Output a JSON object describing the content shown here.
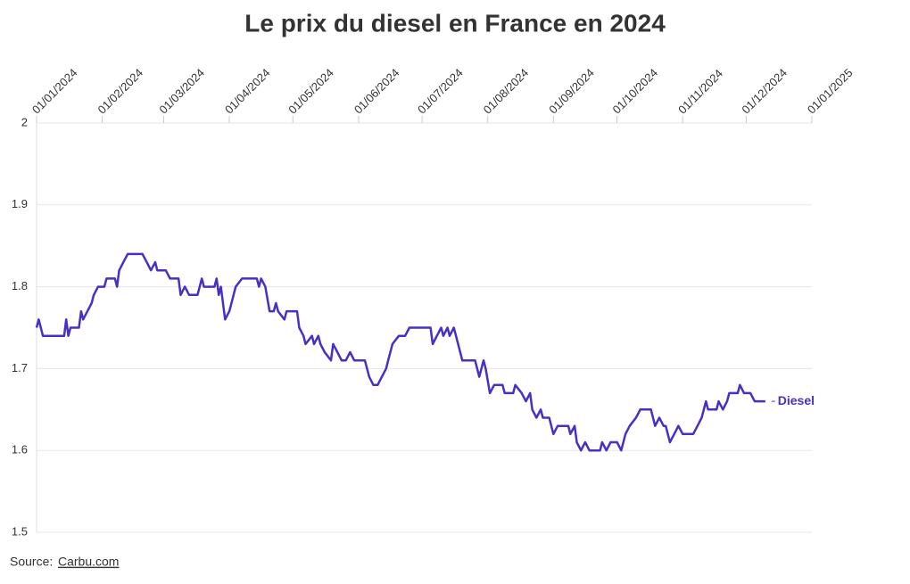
{
  "chart_data": {
    "type": "line",
    "title": "Le prix du diesel en France en 2024",
    "source": {
      "label": "Source:",
      "link": "Carbu.com"
    },
    "xlim": [
      "2024-01-01",
      "2025-01-01"
    ],
    "xticks": [
      {
        "value": "2024-01-01",
        "label": "01/01/2024"
      },
      {
        "value": "2024-02-01",
        "label": "01/02/2024"
      },
      {
        "value": "2024-03-01",
        "label": "01/03/2024"
      },
      {
        "value": "2024-04-01",
        "label": "01/04/2024"
      },
      {
        "value": "2024-05-01",
        "label": "01/05/2024"
      },
      {
        "value": "2024-06-01",
        "label": "01/06/2024"
      },
      {
        "value": "2024-07-01",
        "label": "01/07/2024"
      },
      {
        "value": "2024-08-01",
        "label": "01/08/2024"
      },
      {
        "value": "2024-09-01",
        "label": "01/09/2024"
      },
      {
        "value": "2024-10-01",
        "label": "01/10/2024"
      },
      {
        "value": "2024-11-01",
        "label": "01/11/2024"
      },
      {
        "value": "2024-12-01",
        "label": "01/12/2024"
      },
      {
        "value": "2025-01-01",
        "label": "01/01/2025"
      }
    ],
    "ylim": [
      1.5,
      2
    ],
    "yticks": [
      1.5,
      1.6,
      1.7,
      1.8,
      1.9,
      2
    ],
    "grid": true,
    "x": [
      "2024-01-01",
      "2024-01-02",
      "2024-01-04",
      "2024-01-14",
      "2024-01-15",
      "2024-01-16",
      "2024-01-17",
      "2024-01-21",
      "2024-01-22",
      "2024-01-23",
      "2024-01-25",
      "2024-01-27",
      "2024-01-28",
      "2024-01-30",
      "2024-02-02",
      "2024-02-03",
      "2024-02-07",
      "2024-02-08",
      "2024-02-09",
      "2024-02-11",
      "2024-02-13",
      "2024-02-20",
      "2024-02-22",
      "2024-02-24",
      "2024-02-26",
      "2024-02-27",
      "2024-03-02",
      "2024-03-04",
      "2024-03-08",
      "2024-03-09",
      "2024-03-11",
      "2024-03-13",
      "2024-03-17",
      "2024-03-19",
      "2024-03-20",
      "2024-03-25",
      "2024-03-26",
      "2024-03-27",
      "2024-03-28",
      "2024-03-30",
      "2024-04-01",
      "2024-04-03",
      "2024-04-04",
      "2024-04-07",
      "2024-04-14",
      "2024-04-15",
      "2024-04-16",
      "2024-04-18",
      "2024-04-20",
      "2024-04-22",
      "2024-04-23",
      "2024-04-24",
      "2024-04-27",
      "2024-04-28",
      "2024-05-03",
      "2024-05-04",
      "2024-05-06",
      "2024-05-07",
      "2024-05-10",
      "2024-05-11",
      "2024-05-13",
      "2024-05-14",
      "2024-05-16",
      "2024-05-19",
      "2024-05-20",
      "2024-05-22",
      "2024-05-24",
      "2024-05-26",
      "2024-05-28",
      "2024-05-30",
      "2024-06-04",
      "2024-06-06",
      "2024-06-08",
      "2024-06-10",
      "2024-06-12",
      "2024-06-14",
      "2024-06-15",
      "2024-06-17",
      "2024-06-20",
      "2024-06-23",
      "2024-06-25",
      "2024-07-05",
      "2024-07-06",
      "2024-07-08",
      "2024-07-10",
      "2024-07-11",
      "2024-07-13",
      "2024-07-14",
      "2024-07-16",
      "2024-07-18",
      "2024-07-20",
      "2024-07-26",
      "2024-07-28",
      "2024-07-30",
      "2024-07-31",
      "2024-08-02",
      "2024-08-04",
      "2024-08-08",
      "2024-08-09",
      "2024-08-13",
      "2024-08-14",
      "2024-08-17",
      "2024-08-19",
      "2024-08-21",
      "2024-08-22",
      "2024-08-24",
      "2024-08-26",
      "2024-08-27",
      "2024-08-30",
      "2024-09-01",
      "2024-09-03",
      "2024-09-08",
      "2024-09-09",
      "2024-09-11",
      "2024-09-12",
      "2024-09-14",
      "2024-09-16",
      "2024-09-18",
      "2024-09-23",
      "2024-09-24",
      "2024-09-26",
      "2024-09-28",
      "2024-10-01",
      "2024-10-03",
      "2024-10-05",
      "2024-10-07",
      "2024-10-10",
      "2024-10-12",
      "2024-10-17",
      "2024-10-19",
      "2024-10-21",
      "2024-10-23",
      "2024-10-24",
      "2024-10-26",
      "2024-10-28",
      "2024-10-30",
      "2024-11-01",
      "2024-11-06",
      "2024-11-08",
      "2024-11-10",
      "2024-11-12",
      "2024-11-13",
      "2024-11-17",
      "2024-11-18",
      "2024-11-20",
      "2024-11-22",
      "2024-11-23",
      "2024-11-27",
      "2024-11-28",
      "2024-11-30",
      "2024-12-03",
      "2024-12-05",
      "2024-12-10"
    ],
    "series": [
      {
        "name": "Diesel",
        "color": "#4a2fc4",
        "values": [
          1.75,
          1.76,
          1.74,
          1.74,
          1.76,
          1.74,
          1.75,
          1.75,
          1.77,
          1.76,
          1.77,
          1.78,
          1.79,
          1.8,
          1.8,
          1.81,
          1.81,
          1.8,
          1.82,
          1.83,
          1.84,
          1.84,
          1.83,
          1.82,
          1.83,
          1.82,
          1.82,
          1.81,
          1.81,
          1.79,
          1.8,
          1.79,
          1.79,
          1.81,
          1.8,
          1.8,
          1.81,
          1.79,
          1.8,
          1.76,
          1.77,
          1.79,
          1.8,
          1.81,
          1.81,
          1.8,
          1.81,
          1.8,
          1.77,
          1.77,
          1.78,
          1.77,
          1.76,
          1.77,
          1.77,
          1.75,
          1.74,
          1.73,
          1.74,
          1.73,
          1.74,
          1.73,
          1.72,
          1.71,
          1.73,
          1.72,
          1.71,
          1.71,
          1.72,
          1.71,
          1.71,
          1.69,
          1.68,
          1.68,
          1.69,
          1.7,
          1.71,
          1.73,
          1.74,
          1.74,
          1.75,
          1.75,
          1.73,
          1.74,
          1.75,
          1.74,
          1.75,
          1.74,
          1.75,
          1.73,
          1.71,
          1.71,
          1.69,
          1.71,
          1.7,
          1.67,
          1.68,
          1.68,
          1.67,
          1.67,
          1.68,
          1.67,
          1.66,
          1.67,
          1.65,
          1.64,
          1.65,
          1.64,
          1.64,
          1.62,
          1.63,
          1.63,
          1.62,
          1.63,
          1.61,
          1.6,
          1.61,
          1.6,
          1.6,
          1.61,
          1.6,
          1.61,
          1.61,
          1.6,
          1.62,
          1.63,
          1.64,
          1.65,
          1.65,
          1.63,
          1.64,
          1.63,
          1.63,
          1.61,
          1.62,
          1.63,
          1.62,
          1.62,
          1.63,
          1.64,
          1.66,
          1.65,
          1.65,
          1.66,
          1.65,
          1.66,
          1.67,
          1.67,
          1.68,
          1.67,
          1.67,
          1.66,
          1.66
        ]
      }
    ]
  }
}
